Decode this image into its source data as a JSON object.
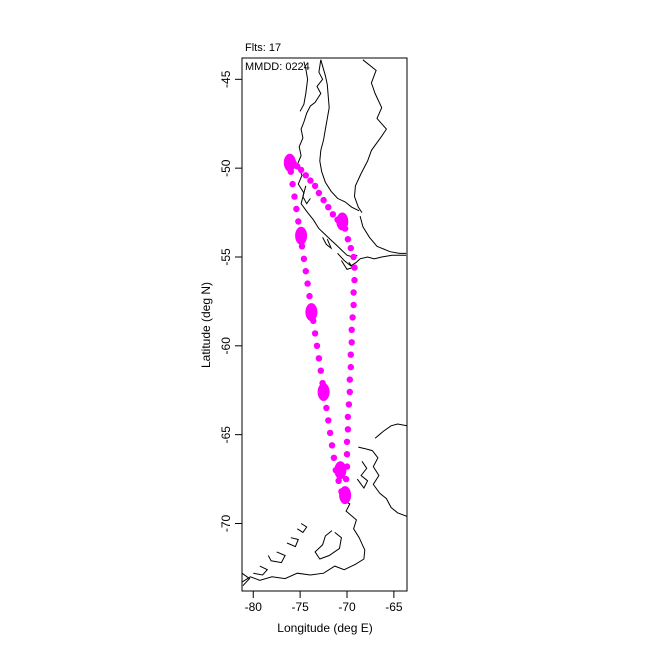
{
  "chart_data": {
    "type": "scatter",
    "title_lines": [
      "Flts: 17",
      "MMDD: 0224"
    ],
    "xlabel": "Longitude (deg E)",
    "ylabel": "Latitude (deg N)",
    "xlim": [
      -81.2,
      -63.6
    ],
    "ylim": [
      -73.8,
      -43.8
    ],
    "xticks": [
      -80,
      -75,
      -70,
      -65
    ],
    "yticks": [
      -45,
      -50,
      -55,
      -60,
      -65,
      -70
    ],
    "grid": false,
    "colors": {
      "track": "#ff00ff",
      "coast": "#000000",
      "axis": "#000000"
    },
    "series": [
      {
        "points": [
          [
            -76.3,
            -49.5
          ],
          [
            -76.1,
            -49.6
          ],
          [
            -75.7,
            -49.7
          ],
          [
            -75.3,
            -49.9
          ],
          [
            -74.9,
            -50.1
          ],
          [
            -74.4,
            -50.4
          ],
          [
            -73.9,
            -50.7
          ],
          [
            -73.4,
            -51.0
          ],
          [
            -73.0,
            -51.4
          ],
          [
            -72.5,
            -51.8
          ],
          [
            -72.0,
            -52.2
          ],
          [
            -71.5,
            -52.6
          ],
          [
            -71.0,
            -52.9
          ],
          [
            -70.6,
            -53.0
          ],
          [
            -70.2,
            -53.4
          ],
          [
            -69.9,
            -54.0
          ],
          [
            -69.6,
            -54.5
          ],
          [
            -69.3,
            -55.0
          ],
          [
            -69.2,
            -55.6
          ],
          [
            -69.2,
            -56.3
          ],
          [
            -69.3,
            -57.0
          ],
          [
            -69.3,
            -57.7
          ],
          [
            -69.4,
            -58.4
          ],
          [
            -69.5,
            -59.1
          ],
          [
            -69.5,
            -59.8
          ],
          [
            -69.6,
            -60.5
          ],
          [
            -69.6,
            -61.2
          ],
          [
            -69.7,
            -61.9
          ],
          [
            -69.7,
            -62.6
          ],
          [
            -69.8,
            -63.3
          ],
          [
            -69.9,
            -64.0
          ],
          [
            -69.9,
            -64.7
          ],
          [
            -70.0,
            -65.4
          ],
          [
            -70.0,
            -66.1
          ],
          [
            -70.0,
            -66.8
          ],
          [
            -70.1,
            -67.5
          ],
          [
            -70.2,
            -68.1
          ],
          [
            -70.3,
            -68.4
          ],
          [
            -70.6,
            -68.2
          ],
          [
            -70.9,
            -67.6
          ],
          [
            -71.2,
            -67.0
          ],
          [
            -71.4,
            -66.3
          ],
          [
            -71.6,
            -65.6
          ],
          [
            -71.8,
            -64.9
          ],
          [
            -72.0,
            -64.2
          ],
          [
            -72.2,
            -63.5
          ],
          [
            -72.4,
            -62.8
          ],
          [
            -72.6,
            -62.1
          ],
          [
            -72.8,
            -61.4
          ],
          [
            -73.0,
            -60.7
          ],
          [
            -73.2,
            -60.0
          ],
          [
            -73.4,
            -59.3
          ],
          [
            -73.6,
            -58.6
          ],
          [
            -73.8,
            -57.9
          ],
          [
            -74.0,
            -57.2
          ],
          [
            -74.2,
            -56.5
          ],
          [
            -74.4,
            -55.8
          ],
          [
            -74.6,
            -55.1
          ],
          [
            -74.8,
            -54.4
          ],
          [
            -75.0,
            -53.7
          ],
          [
            -75.2,
            -53.0
          ],
          [
            -75.4,
            -52.3
          ],
          [
            -75.6,
            -51.6
          ],
          [
            -75.8,
            -50.9
          ],
          [
            -76.0,
            -50.2
          ],
          [
            -76.2,
            -49.7
          ]
        ],
        "clusters": [
          [
            -76.1,
            -49.7
          ],
          [
            -70.2,
            -68.4
          ],
          [
            -70.7,
            -67.0
          ],
          [
            -72.5,
            -62.6
          ],
          [
            -73.8,
            -58.1
          ],
          [
            -74.9,
            -53.8
          ],
          [
            -70.5,
            -53.0
          ]
        ]
      }
    ],
    "coastlines": [
      [
        [
          -75.0,
          -46.8
        ],
        [
          -74.6,
          -46.4
        ],
        [
          -74.4,
          -45.8
        ],
        [
          -74.2,
          -45.0
        ],
        [
          -74.4,
          -44.4
        ],
        [
          -74.6,
          -44.0
        ]
      ],
      [
        [
          -72.8,
          -43.9
        ],
        [
          -73.0,
          -44.6
        ],
        [
          -72.6,
          -45.0
        ],
        [
          -73.2,
          -45.4
        ],
        [
          -72.8,
          -45.8
        ],
        [
          -73.4,
          -46.3
        ],
        [
          -73.9,
          -46.5
        ],
        [
          -74.3,
          -46.9
        ],
        [
          -74.6,
          -47.4
        ],
        [
          -74.9,
          -47.8
        ],
        [
          -74.7,
          -48.3
        ],
        [
          -75.1,
          -48.8
        ],
        [
          -74.9,
          -49.3
        ],
        [
          -75.3,
          -49.8
        ],
        [
          -74.8,
          -50.4
        ],
        [
          -75.2,
          -50.9
        ],
        [
          -74.6,
          -51.4
        ],
        [
          -74.9,
          -52.0
        ],
        [
          -74.2,
          -52.5
        ],
        [
          -73.6,
          -52.9
        ],
        [
          -73.0,
          -53.4
        ],
        [
          -72.4,
          -53.7
        ],
        [
          -71.8,
          -54.0
        ],
        [
          -71.2,
          -54.3
        ],
        [
          -70.6,
          -54.6
        ],
        [
          -70.0,
          -54.9
        ],
        [
          -69.4,
          -55.0
        ],
        [
          -68.9,
          -54.9
        ]
      ],
      [
        [
          -72.8,
          -43.9
        ],
        [
          -72.3,
          -44.8
        ],
        [
          -72.1,
          -45.3
        ],
        [
          -72.0,
          -46.0
        ],
        [
          -71.9,
          -46.6
        ],
        [
          -72.1,
          -47.2
        ],
        [
          -72.3,
          -47.8
        ],
        [
          -72.5,
          -48.4
        ],
        [
          -72.8,
          -49.0
        ],
        [
          -72.9,
          -49.6
        ],
        [
          -72.7,
          -50.2
        ],
        [
          -72.3,
          -50.8
        ],
        [
          -71.7,
          -51.3
        ],
        [
          -71.0,
          -51.7
        ],
        [
          -70.2,
          -51.9
        ],
        [
          -69.5,
          -52.2
        ],
        [
          -68.7,
          -52.4
        ]
      ],
      [
        [
          -68.3,
          -43.9
        ],
        [
          -66.9,
          -44.5
        ],
        [
          -67.4,
          -45.2
        ],
        [
          -67.0,
          -45.8
        ],
        [
          -66.3,
          -46.6
        ],
        [
          -66.8,
          -47.2
        ],
        [
          -65.8,
          -47.8
        ],
        [
          -66.3,
          -48.2
        ],
        [
          -67.4,
          -49.0
        ],
        [
          -67.8,
          -49.6
        ],
        [
          -68.5,
          -50.3
        ],
        [
          -69.1,
          -51.0
        ],
        [
          -69.2,
          -51.6
        ],
        [
          -68.8,
          -52.2
        ],
        [
          -68.4,
          -52.5
        ]
      ],
      [
        [
          -68.6,
          -52.7
        ],
        [
          -68.3,
          -53.3
        ],
        [
          -67.6,
          -53.9
        ],
        [
          -66.8,
          -54.4
        ],
        [
          -65.4,
          -54.7
        ],
        [
          -64.4,
          -54.8
        ],
        [
          -63.7,
          -54.8
        ]
      ],
      [
        [
          -63.7,
          -54.9
        ],
        [
          -64.4,
          -54.9
        ],
        [
          -65.2,
          -54.9
        ],
        [
          -66.3,
          -55.0
        ],
        [
          -67.1,
          -55.1
        ],
        [
          -67.8,
          -55.0
        ],
        [
          -68.6,
          -55.1
        ],
        [
          -69.0,
          -55.3
        ],
        [
          -69.6,
          -55.5
        ],
        [
          -70.3,
          -55.2
        ],
        [
          -71.0,
          -54.8
        ]
      ],
      [
        [
          -74.4,
          -51.0
        ],
        [
          -74.7,
          -51.6
        ],
        [
          -74.3,
          -52.0
        ],
        [
          -73.9,
          -51.7
        ]
      ],
      [
        [
          -72.6,
          -53.9
        ],
        [
          -72.2,
          -54.3
        ],
        [
          -71.7,
          -54.5
        ],
        [
          -72.1,
          -54.0
        ]
      ],
      [
        [
          -70.6,
          -55.2
        ],
        [
          -70.0,
          -55.7
        ],
        [
          -69.4,
          -55.6
        ],
        [
          -69.8,
          -55.3
        ]
      ],
      [
        [
          -67.0,
          -65.2
        ],
        [
          -66.1,
          -64.8
        ],
        [
          -65.3,
          -64.5
        ],
        [
          -64.6,
          -64.4
        ],
        [
          -63.6,
          -64.5
        ]
      ],
      [
        [
          -68.8,
          -65.7
        ],
        [
          -68.0,
          -65.8
        ],
        [
          -67.3,
          -65.9
        ],
        [
          -66.7,
          -66.3
        ],
        [
          -67.2,
          -66.8
        ],
        [
          -66.6,
          -67.3
        ],
        [
          -67.2,
          -67.8
        ],
        [
          -66.5,
          -68.3
        ],
        [
          -65.8,
          -68.6
        ],
        [
          -65.3,
          -69.1
        ],
        [
          -64.6,
          -69.4
        ],
        [
          -63.6,
          -69.6
        ]
      ],
      [
        [
          -68.4,
          -66.5
        ],
        [
          -67.9,
          -66.9
        ],
        [
          -68.5,
          -67.3
        ],
        [
          -67.8,
          -67.6
        ],
        [
          -68.2,
          -68.0
        ],
        [
          -68.9,
          -67.5
        ]
      ],
      [
        [
          -70.6,
          -68.6
        ],
        [
          -69.7,
          -68.9
        ],
        [
          -70.1,
          -69.3
        ],
        [
          -69.0,
          -69.8
        ],
        [
          -69.3,
          -70.3
        ],
        [
          -68.7,
          -70.8
        ],
        [
          -68.1,
          -71.5
        ],
        [
          -68.2,
          -72.0
        ],
        [
          -69.1,
          -72.3
        ],
        [
          -70.3,
          -72.6
        ],
        [
          -71.3,
          -72.4
        ],
        [
          -72.5,
          -72.8
        ],
        [
          -73.9,
          -72.9
        ],
        [
          -75.3,
          -72.8
        ],
        [
          -76.6,
          -73.1
        ],
        [
          -78.0,
          -73.0
        ],
        [
          -79.3,
          -73.2
        ],
        [
          -80.3,
          -73.0
        ],
        [
          -81.2,
          -73.3
        ]
      ],
      [
        [
          -71.3,
          -70.5
        ],
        [
          -70.6,
          -70.8
        ],
        [
          -70.8,
          -71.4
        ],
        [
          -71.9,
          -71.8
        ],
        [
          -72.9,
          -72.0
        ],
        [
          -73.4,
          -71.6
        ],
        [
          -72.6,
          -71.2
        ],
        [
          -72.3,
          -70.7
        ],
        [
          -71.6,
          -70.4
        ]
      ],
      [
        [
          -74.9,
          -70.0
        ],
        [
          -74.3,
          -70.2
        ],
        [
          -74.7,
          -70.5
        ],
        [
          -75.3,
          -70.3
        ]
      ],
      [
        [
          -76.0,
          -70.8
        ],
        [
          -75.2,
          -70.9
        ],
        [
          -75.5,
          -71.3
        ],
        [
          -76.4,
          -71.1
        ]
      ],
      [
        [
          -77.5,
          -71.6
        ],
        [
          -76.6,
          -71.8
        ],
        [
          -77.0,
          -72.2
        ],
        [
          -78.1,
          -72.1
        ],
        [
          -78.4,
          -71.8
        ]
      ],
      [
        [
          -79.3,
          -72.4
        ],
        [
          -78.5,
          -72.6
        ],
        [
          -79.0,
          -72.9
        ],
        [
          -80.0,
          -72.8
        ]
      ],
      [
        [
          -81.2,
          -72.8
        ],
        [
          -80.4,
          -73.1
        ],
        [
          -81.1,
          -73.5
        ]
      ]
    ]
  }
}
